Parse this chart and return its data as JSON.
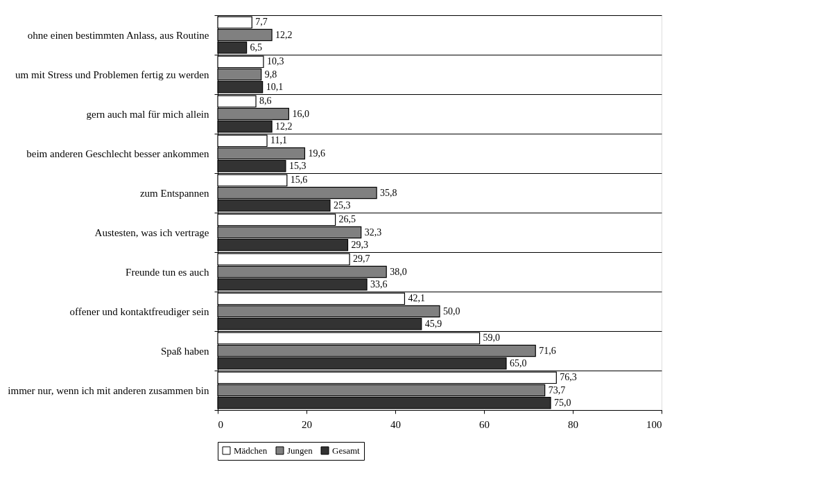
{
  "chart_data": {
    "type": "bar",
    "orientation": "horizontal",
    "categories": [
      "ohne einen bestimmten Anlass, aus Routine",
      "um mit Stress und Problemen fertig zu werden",
      "gern auch mal für mich allein",
      "beim anderen Geschlecht besser ankommen",
      "zum Entspannen",
      "Austesten, was ich vertrage",
      "Freunde tun es auch",
      "offener und kontaktfreudiger sein",
      "Spaß haben",
      "immer nur, wenn ich mit anderen zusammen bin"
    ],
    "series": [
      {
        "name": "Mädchen",
        "color": "#ffffff",
        "values": [
          7.7,
          10.3,
          8.6,
          11.1,
          15.6,
          26.5,
          29.7,
          42.1,
          59.0,
          76.3
        ]
      },
      {
        "name": "Jungen",
        "color": "#808080",
        "values": [
          12.2,
          9.8,
          16.0,
          19.6,
          35.8,
          32.3,
          38.0,
          50.0,
          71.6,
          73.7
        ]
      },
      {
        "name": "Gesamt",
        "color": "#333333",
        "values": [
          6.5,
          10.1,
          12.2,
          15.3,
          25.3,
          29.3,
          33.6,
          45.9,
          65.0,
          75.0
        ]
      }
    ],
    "value_labels": [
      [
        "7,7",
        "10,3",
        "8,6",
        "11,1",
        "15,6",
        "26,5",
        "29,7",
        "42,1",
        "59,0",
        "76,3"
      ],
      [
        "12,2",
        "9,8",
        "16,0",
        "19,6",
        "35,8",
        "32,3",
        "38,0",
        "50,0",
        "71,6",
        "73,7"
      ],
      [
        "6,5",
        "10,1",
        "12,2",
        "15,3",
        "25,3",
        "29,3",
        "33,6",
        "45,9",
        "65,0",
        "75,0"
      ]
    ],
    "xlim": [
      0,
      100
    ],
    "xticks": [
      0,
      20,
      40,
      60,
      80,
      100
    ],
    "grid": "y",
    "legend": "bottom"
  }
}
